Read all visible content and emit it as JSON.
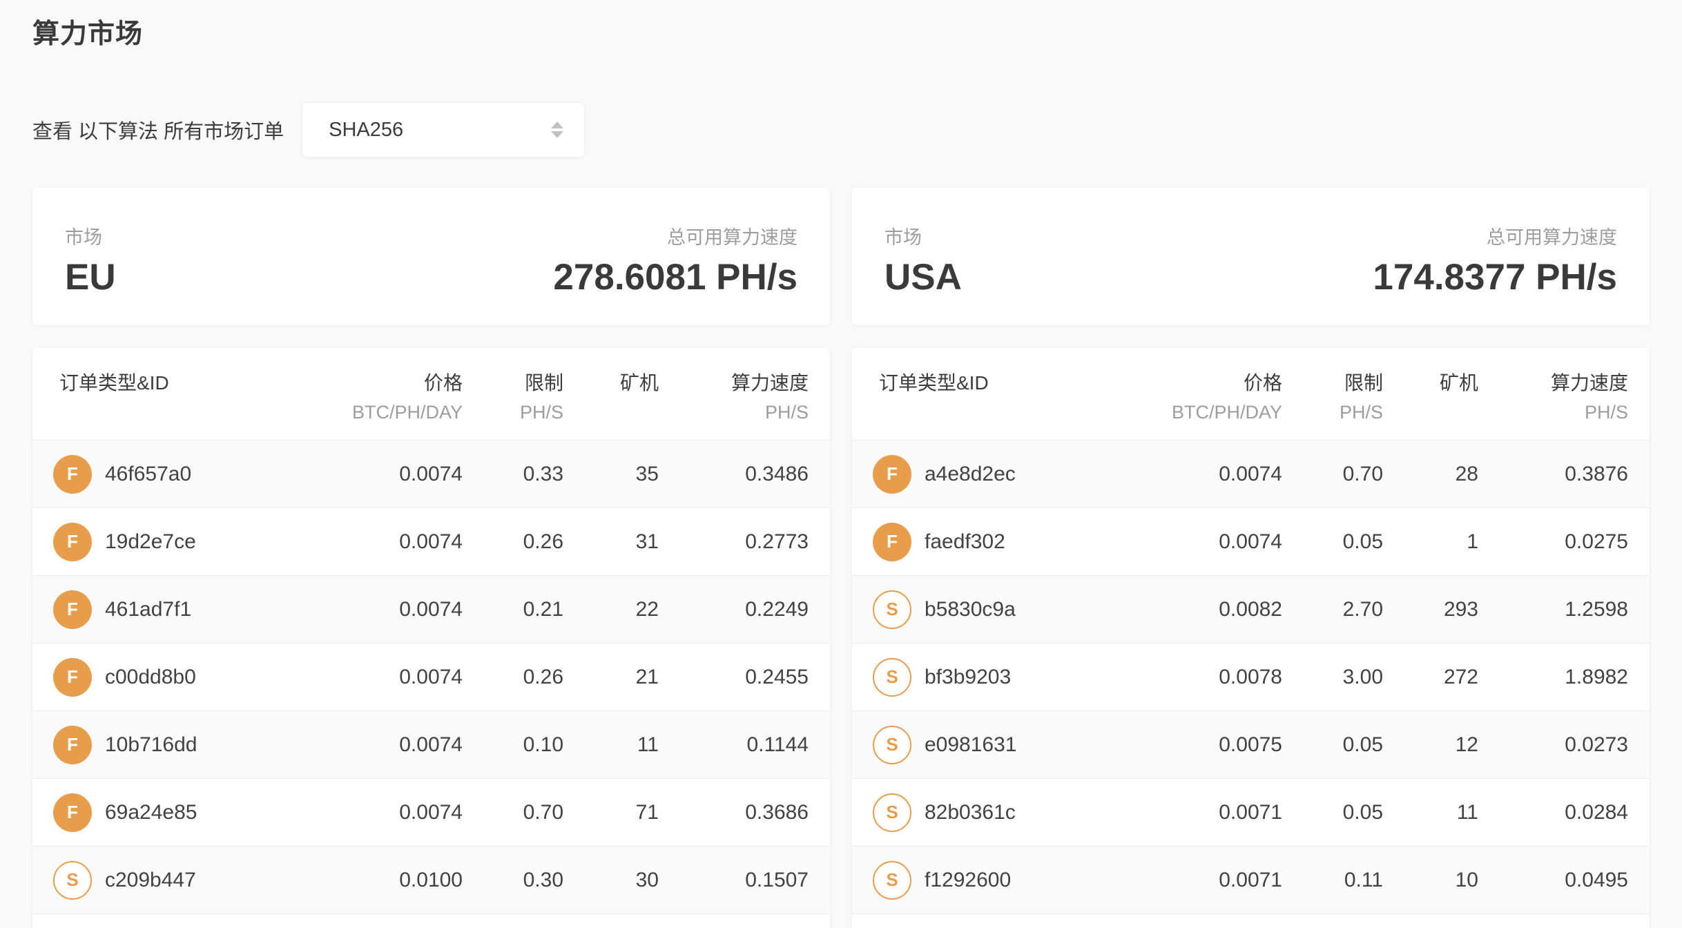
{
  "theme": {
    "accent_orange": "#e89d4c",
    "text_dark": "#3b3b3b",
    "text_gray": "#9d9d9d",
    "page_bg": "#f9f9f9",
    "stripe": "#fafafa",
    "divider": "#ededed"
  },
  "page": {
    "title": "算力市场"
  },
  "filter": {
    "label": "查看 以下算法 所有市场订单",
    "algorithm_select": {
      "value": "SHA256",
      "arrows_icon": "chevron-up-down"
    }
  },
  "markets": [
    {
      "label": "市场",
      "name": "EU",
      "speed_label": "总可用算力速度",
      "speed_value": "278.6081 PH/s"
    },
    {
      "label": "市场",
      "name": "USA",
      "speed_label": "总可用算力速度",
      "speed_value": "174.8377 PH/s"
    }
  ],
  "table_headers": {
    "order": "订单类型&ID",
    "price": "价格",
    "price_unit": "BTC/PH/DAY",
    "limit": "限制",
    "limit_unit": "PH/S",
    "miners": "矿机",
    "speed": "算力速度",
    "speed_unit": "PH/S"
  },
  "orders": {
    "eu": [
      {
        "type": "F",
        "id": "46f657a0",
        "price": "0.0074",
        "limit": "0.33",
        "miners": "35",
        "speed": "0.3486"
      },
      {
        "type": "F",
        "id": "19d2e7ce",
        "price": "0.0074",
        "limit": "0.26",
        "miners": "31",
        "speed": "0.2773"
      },
      {
        "type": "F",
        "id": "461ad7f1",
        "price": "0.0074",
        "limit": "0.21",
        "miners": "22",
        "speed": "0.2249"
      },
      {
        "type": "F",
        "id": "c00dd8b0",
        "price": "0.0074",
        "limit": "0.26",
        "miners": "21",
        "speed": "0.2455"
      },
      {
        "type": "F",
        "id": "10b716dd",
        "price": "0.0074",
        "limit": "0.10",
        "miners": "11",
        "speed": "0.1144"
      },
      {
        "type": "F",
        "id": "69a24e85",
        "price": "0.0074",
        "limit": "0.70",
        "miners": "71",
        "speed": "0.3686"
      },
      {
        "type": "S",
        "id": "c209b447",
        "price": "0.0100",
        "limit": "0.30",
        "miners": "30",
        "speed": "0.1507"
      }
    ],
    "usa": [
      {
        "type": "F",
        "id": "a4e8d2ec",
        "price": "0.0074",
        "limit": "0.70",
        "miners": "28",
        "speed": "0.3876"
      },
      {
        "type": "F",
        "id": "faedf302",
        "price": "0.0074",
        "limit": "0.05",
        "miners": "1",
        "speed": "0.0275"
      },
      {
        "type": "S",
        "id": "b5830c9a",
        "price": "0.0082",
        "limit": "2.70",
        "miners": "293",
        "speed": "1.2598"
      },
      {
        "type": "S",
        "id": "bf3b9203",
        "price": "0.0078",
        "limit": "3.00",
        "miners": "272",
        "speed": "1.8982"
      },
      {
        "type": "S",
        "id": "e0981631",
        "price": "0.0075",
        "limit": "0.05",
        "miners": "12",
        "speed": "0.0273"
      },
      {
        "type": "S",
        "id": "82b0361c",
        "price": "0.0071",
        "limit": "0.05",
        "miners": "11",
        "speed": "0.0284"
      },
      {
        "type": "S",
        "id": "f1292600",
        "price": "0.0071",
        "limit": "0.11",
        "miners": "10",
        "speed": "0.0495"
      }
    ]
  }
}
